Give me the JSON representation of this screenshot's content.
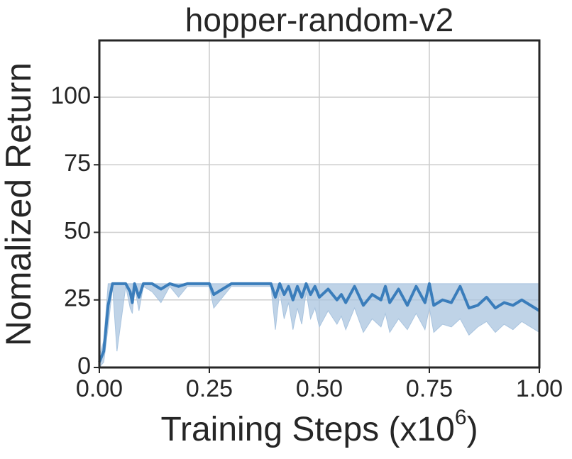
{
  "chart_data": {
    "type": "line",
    "title": "hopper-random-v2",
    "y_label": "Nomalized Return",
    "x_label": {
      "text": "Training Steps (x10",
      "exponent": "6",
      "suffix": ")"
    },
    "xlim": [
      0,
      1
    ],
    "ylim": [
      0,
      121
    ],
    "xticks": [
      {
        "value": 0,
        "label": "0.00"
      },
      {
        "value": 0.25,
        "label": "0.25"
      },
      {
        "value": 0.5,
        "label": "0.50"
      },
      {
        "value": 0.75,
        "label": "0.75"
      },
      {
        "value": 1,
        "label": "1.00"
      }
    ],
    "yticks": [
      0,
      25,
      50,
      75,
      100
    ],
    "grid": true,
    "x": [
      0,
      0.01,
      0.02,
      0.03,
      0.04,
      0.06,
      0.07,
      0.075,
      0.08,
      0.09,
      0.1,
      0.12,
      0.14,
      0.16,
      0.18,
      0.2,
      0.25,
      0.26,
      0.3,
      0.35,
      0.39,
      0.4,
      0.41,
      0.42,
      0.43,
      0.44,
      0.45,
      0.46,
      0.47,
      0.48,
      0.49,
      0.5,
      0.52,
      0.54,
      0.55,
      0.56,
      0.58,
      0.6,
      0.62,
      0.64,
      0.65,
      0.66,
      0.68,
      0.7,
      0.72,
      0.74,
      0.75,
      0.76,
      0.78,
      0.8,
      0.82,
      0.84,
      0.86,
      0.88,
      0.9,
      0.92,
      0.94,
      0.96,
      0.98,
      1.0
    ],
    "series": [
      {
        "color": "#3a7dbb",
        "band_color": "#a9c4df",
        "values": [
          2,
          6,
          23,
          31,
          31,
          31,
          28,
          24,
          31,
          26,
          31,
          31,
          29,
          31,
          30,
          31,
          31,
          27,
          31,
          31,
          31,
          26,
          31,
          27,
          30,
          25,
          30,
          26,
          31,
          27,
          30,
          26,
          29,
          25,
          27,
          24,
          30,
          23,
          27,
          25,
          30,
          24,
          29,
          23,
          30,
          24,
          31,
          23,
          25,
          24,
          30,
          22,
          23,
          26,
          22,
          24,
          23,
          25,
          23,
          21
        ],
        "lower": [
          0,
          2,
          15,
          30,
          6,
          30,
          22,
          20,
          30,
          21,
          30,
          28,
          24,
          30,
          26,
          30,
          30,
          22,
          30,
          30,
          30,
          14,
          28,
          18,
          24,
          14,
          22,
          16,
          28,
          18,
          22,
          15,
          21,
          16,
          19,
          14,
          22,
          13,
          18,
          15,
          20,
          13,
          18,
          14,
          20,
          14,
          22,
          13,
          16,
          15,
          18,
          12,
          15,
          17,
          13,
          16,
          14,
          17,
          15,
          13
        ],
        "upper": [
          4,
          10,
          31,
          31,
          31,
          31,
          31,
          31,
          31,
          31,
          31,
          31,
          31,
          31,
          31,
          31,
          31,
          31,
          31,
          31,
          31,
          31,
          31,
          31,
          31,
          31,
          31,
          31,
          31,
          31,
          31,
          31,
          31,
          31,
          31,
          31,
          31,
          31,
          31,
          31,
          31,
          31,
          31,
          31,
          31,
          31,
          31,
          31,
          31,
          31,
          31,
          31,
          31,
          31,
          31,
          31,
          31,
          31,
          31,
          31
        ]
      }
    ]
  }
}
